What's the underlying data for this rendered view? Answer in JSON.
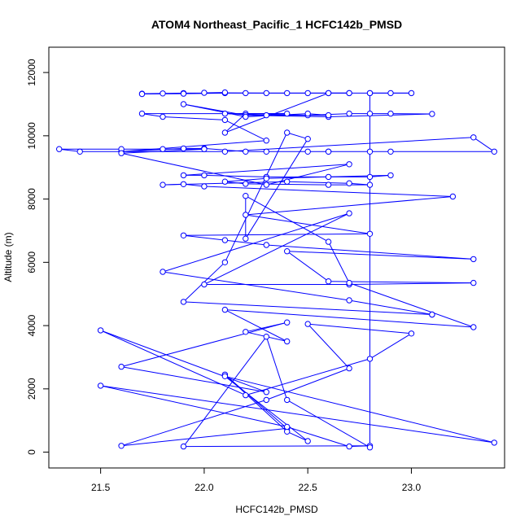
{
  "chart_data": {
    "type": "line",
    "title": "ATOM4 Northeast_Pacific_1 HCFC142b_PMSD",
    "xlabel": "HCFC142b_PMSD",
    "ylabel": "Altitude (m)",
    "xlim": [
      21.25,
      23.45
    ],
    "ylim": [
      -500,
      12800
    ],
    "xticks": [
      21.5,
      22.0,
      22.5,
      23.0
    ],
    "xtick_labels": [
      "21.5",
      "22.0",
      "22.5",
      "23.0"
    ],
    "yticks": [
      0,
      2000,
      4000,
      6000,
      8000,
      10000,
      12000
    ],
    "ytick_labels": [
      "0",
      "2000",
      "4000",
      "6000",
      "8000",
      "10000",
      "12000"
    ],
    "grid": false,
    "marker": "open-circle",
    "series_color": "#0000ff",
    "series": [
      {
        "points": [
          [
            22.8,
            11350
          ],
          [
            23.0,
            11350
          ],
          [
            22.9,
            11350
          ],
          [
            22.7,
            11350
          ],
          [
            22.4,
            11350
          ],
          [
            22.2,
            11350
          ],
          [
            21.9,
            11350
          ],
          [
            21.8,
            11340
          ],
          [
            21.7,
            11330
          ],
          [
            21.7,
            11320
          ],
          [
            21.9,
            11330
          ],
          [
            22.1,
            11350
          ],
          [
            22.1,
            11370
          ],
          [
            22.0,
            11360
          ],
          [
            22.3,
            11350
          ],
          [
            22.5,
            11350
          ],
          [
            22.6,
            11350
          ],
          [
            22.7,
            11350
          ],
          [
            22.6,
            11350
          ],
          [
            22.1,
            10100
          ],
          [
            22.2,
            10700
          ],
          [
            22.5,
            10650
          ],
          [
            22.7,
            10700
          ],
          [
            22.8,
            10700
          ],
          [
            22.9,
            10700
          ],
          [
            23.1,
            10690
          ],
          [
            22.6,
            10600
          ],
          [
            22.2,
            10650
          ],
          [
            21.9,
            11000
          ],
          [
            22.2,
            10600
          ],
          [
            22.5,
            10700
          ],
          [
            22.6,
            10650
          ],
          [
            22.3,
            10650
          ],
          [
            22.1,
            10700
          ],
          [
            22.4,
            10700
          ],
          [
            21.7,
            10700
          ],
          [
            21.8,
            10600
          ],
          [
            22.1,
            10500
          ],
          [
            22.3,
            9850
          ],
          [
            21.6,
            9500
          ],
          [
            21.9,
            9600
          ],
          [
            22.0,
            9600
          ],
          [
            22.2,
            9500
          ],
          [
            22.3,
            9500
          ],
          [
            22.5,
            9500
          ],
          [
            22.6,
            9500
          ],
          [
            22.6,
            9500
          ],
          [
            22.8,
            9500
          ],
          [
            22.9,
            9500
          ],
          [
            23.4,
            9500
          ],
          [
            23.3,
            9950
          ],
          [
            22.1,
            9500
          ],
          [
            21.4,
            9500
          ],
          [
            21.3,
            9580
          ],
          [
            21.6,
            9580
          ],
          [
            21.8,
            9580
          ],
          [
            22.0,
            9580
          ],
          [
            21.6,
            9450
          ],
          [
            22.3,
            8450
          ],
          [
            22.7,
            9100
          ],
          [
            21.9,
            8750
          ],
          [
            22.0,
            8750
          ],
          [
            22.3,
            8700
          ],
          [
            22.6,
            8700
          ],
          [
            22.8,
            8700
          ],
          [
            22.9,
            8750
          ],
          [
            22.3,
            8650
          ],
          [
            22.1,
            8550
          ],
          [
            22.2,
            8480
          ],
          [
            22.6,
            8450
          ],
          [
            22.8,
            8450
          ],
          [
            22.7,
            8500
          ],
          [
            22.4,
            8550
          ],
          [
            21.8,
            8450
          ],
          [
            21.9,
            8470
          ],
          [
            22.0,
            8400
          ],
          [
            23.2,
            8080
          ],
          [
            22.2,
            7500
          ],
          [
            22.8,
            6900
          ],
          [
            21.9,
            6850
          ],
          [
            22.1,
            6700
          ],
          [
            22.3,
            6550
          ],
          [
            23.3,
            6100
          ],
          [
            22.4,
            6350
          ],
          [
            22.6,
            5400
          ],
          [
            23.3,
            5350
          ],
          [
            22.7,
            5300
          ],
          [
            22.0,
            5300
          ],
          [
            22.7,
            7550
          ],
          [
            21.8,
            5700
          ],
          [
            22.7,
            4800
          ],
          [
            23.1,
            4350
          ],
          [
            23.1,
            4350
          ],
          [
            21.9,
            4750
          ],
          [
            22.1,
            6000
          ],
          [
            22.4,
            10100
          ],
          [
            22.5,
            9900
          ],
          [
            22.2,
            6750
          ],
          [
            22.2,
            8100
          ],
          [
            22.6,
            6650
          ],
          [
            22.7,
            5350
          ],
          [
            23.3,
            3950
          ],
          [
            22.1,
            4500
          ],
          [
            22.4,
            3500
          ],
          [
            22.2,
            3800
          ],
          [
            22.4,
            4100
          ],
          [
            21.6,
            2700
          ],
          [
            22.3,
            1900
          ],
          [
            21.5,
            3850
          ],
          [
            22.2,
            1800
          ],
          [
            22.8,
            2950
          ],
          [
            23.0,
            3750
          ],
          [
            22.5,
            4050
          ],
          [
            22.7,
            2650
          ],
          [
            22.3,
            1650
          ],
          [
            21.6,
            200
          ],
          [
            22.4,
            750
          ],
          [
            22.1,
            2450
          ],
          [
            22.4,
            650
          ],
          [
            22.5,
            350
          ],
          [
            22.1,
            2400
          ],
          [
            23.4,
            300
          ],
          [
            21.5,
            2100
          ],
          [
            22.4,
            800
          ],
          [
            22.7,
            180
          ],
          [
            22.8,
            200
          ],
          [
            21.9,
            180
          ],
          [
            22.3,
            3650
          ],
          [
            22.4,
            1650
          ],
          [
            22.8,
            150
          ],
          [
            22.8,
            11350
          ]
        ]
      }
    ]
  }
}
